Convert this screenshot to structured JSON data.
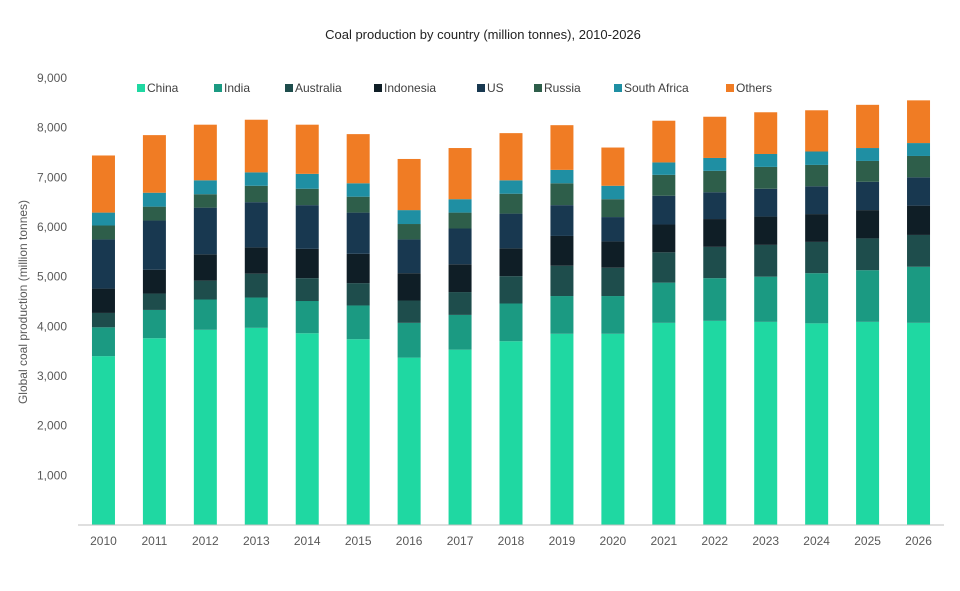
{
  "chart_data": {
    "type": "bar",
    "stacked": true,
    "title": "Coal production by country (million tonnes), 2010-2026",
    "xlabel": "",
    "ylabel": "Global coal production (million tonnes)",
    "ylim": [
      0,
      9000
    ],
    "yticks": [
      0,
      1000,
      2000,
      3000,
      4000,
      5000,
      6000,
      7000,
      8000,
      9000
    ],
    "ytick_labels": [
      "",
      "1,000",
      "2,000",
      "3,000",
      "4,000",
      "5,000",
      "6,000",
      "7,000",
      "8,000",
      "9,000"
    ],
    "grid": false,
    "legend_position": "top",
    "categories": [
      "2010",
      "2011",
      "2012",
      "2013",
      "2014",
      "2015",
      "2016",
      "2017",
      "2018",
      "2019",
      "2020",
      "2021",
      "2022",
      "2023",
      "2024",
      "2025",
      "2026"
    ],
    "series": [
      {
        "name": "China",
        "color": "#1fd8a2",
        "values": [
          3400,
          3760,
          3930,
          3970,
          3860,
          3740,
          3370,
          3530,
          3700,
          3850,
          3850,
          4070,
          4110,
          4090,
          4060,
          4090,
          4070
        ]
      },
      {
        "name": "India",
        "color": "#1b9a82",
        "values": [
          580,
          570,
          610,
          610,
          650,
          680,
          700,
          700,
          760,
          760,
          760,
          810,
          860,
          910,
          1010,
          1040,
          1130
        ]
      },
      {
        "name": "Australia",
        "color": "#1e4d4c",
        "values": [
          290,
          330,
          380,
          480,
          460,
          450,
          450,
          460,
          550,
          610,
          570,
          610,
          630,
          640,
          630,
          640,
          640
        ]
      },
      {
        "name": "Indonesia",
        "color": "#0f1e26",
        "values": [
          490,
          480,
          530,
          530,
          590,
          590,
          550,
          560,
          560,
          600,
          530,
          560,
          560,
          570,
          560,
          570,
          590
        ]
      },
      {
        "name": "US",
        "color": "#183850",
        "values": [
          990,
          990,
          940,
          910,
          880,
          830,
          680,
          720,
          700,
          620,
          490,
          580,
          540,
          560,
          560,
          570,
          570
        ]
      },
      {
        "name": "Russia",
        "color": "#2e5e4a",
        "values": [
          280,
          280,
          270,
          330,
          330,
          320,
          310,
          320,
          400,
          440,
          360,
          420,
          430,
          440,
          430,
          420,
          430
        ]
      },
      {
        "name": "South Africa",
        "color": "#1f8fa3",
        "values": [
          260,
          280,
          280,
          270,
          300,
          270,
          280,
          270,
          270,
          270,
          270,
          250,
          260,
          260,
          270,
          260,
          260
        ]
      },
      {
        "name": "Others",
        "color": "#f07c24",
        "values": [
          1150,
          1160,
          1120,
          1060,
          990,
          990,
          1030,
          1030,
          950,
          900,
          770,
          840,
          830,
          840,
          830,
          870,
          860
        ]
      }
    ]
  }
}
